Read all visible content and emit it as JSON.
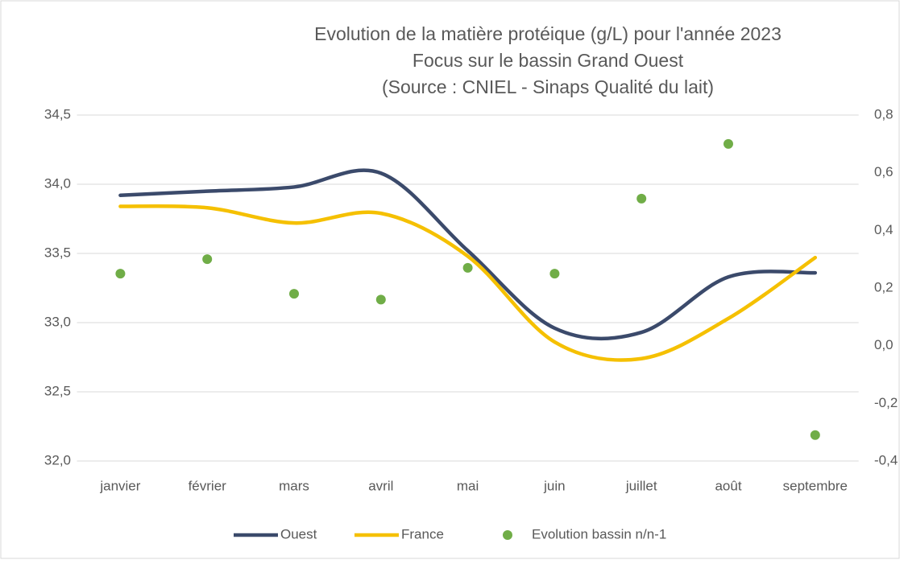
{
  "chart_data": {
    "type": "line",
    "title_lines": [
      "Evolution de la matière protéique (g/L) pour l'année 2023",
      "Focus sur le bassin Grand Ouest",
      "(Source : CNIEL - Sinaps Qualité du lait)"
    ],
    "categories": [
      "janvier",
      "février",
      "mars",
      "avril",
      "mai",
      "juin",
      "juillet",
      "août",
      "septembre"
    ],
    "series": [
      {
        "name": "Ouest",
        "color": "#3b4a6b",
        "values": [
          33.92,
          33.95,
          33.98,
          34.08,
          33.52,
          32.96,
          32.93,
          33.33,
          33.36
        ]
      },
      {
        "name": "France",
        "color": "#f5c000",
        "values": [
          33.84,
          33.83,
          33.72,
          33.79,
          33.48,
          32.86,
          32.74,
          33.03,
          33.47
        ]
      },
      {
        "name": "Evolution bassin n/n-1",
        "color": "#70ad47",
        "type": "scatter",
        "axis": "y2",
        "values": [
          0.25,
          0.3,
          0.18,
          0.16,
          0.27,
          0.25,
          0.51,
          0.7,
          -0.31
        ]
      }
    ],
    "ylim": [
      32.0,
      34.5
    ],
    "yticks": [
      {
        "value": 32.0,
        "label": "32,0"
      },
      {
        "value": 32.5,
        "label": "32,5"
      },
      {
        "value": 33.0,
        "label": "33,0"
      },
      {
        "value": 33.5,
        "label": "33,5"
      },
      {
        "value": 34.0,
        "label": "34,0"
      },
      {
        "value": 34.5,
        "label": "34,5"
      }
    ],
    "y2lim": [
      -0.4,
      0.8
    ],
    "y2ticks": [
      {
        "value": -0.4,
        "label": "-0,4"
      },
      {
        "value": -0.2,
        "label": "-0,2"
      },
      {
        "value": 0.0,
        "label": "0,0"
      },
      {
        "value": 0.2,
        "label": "0,2"
      },
      {
        "value": 0.4,
        "label": "0,4"
      },
      {
        "value": 0.6,
        "label": "0,6"
      },
      {
        "value": 0.8,
        "label": "0,8"
      }
    ],
    "grid": true,
    "smooth": true,
    "legend": "bottom"
  }
}
